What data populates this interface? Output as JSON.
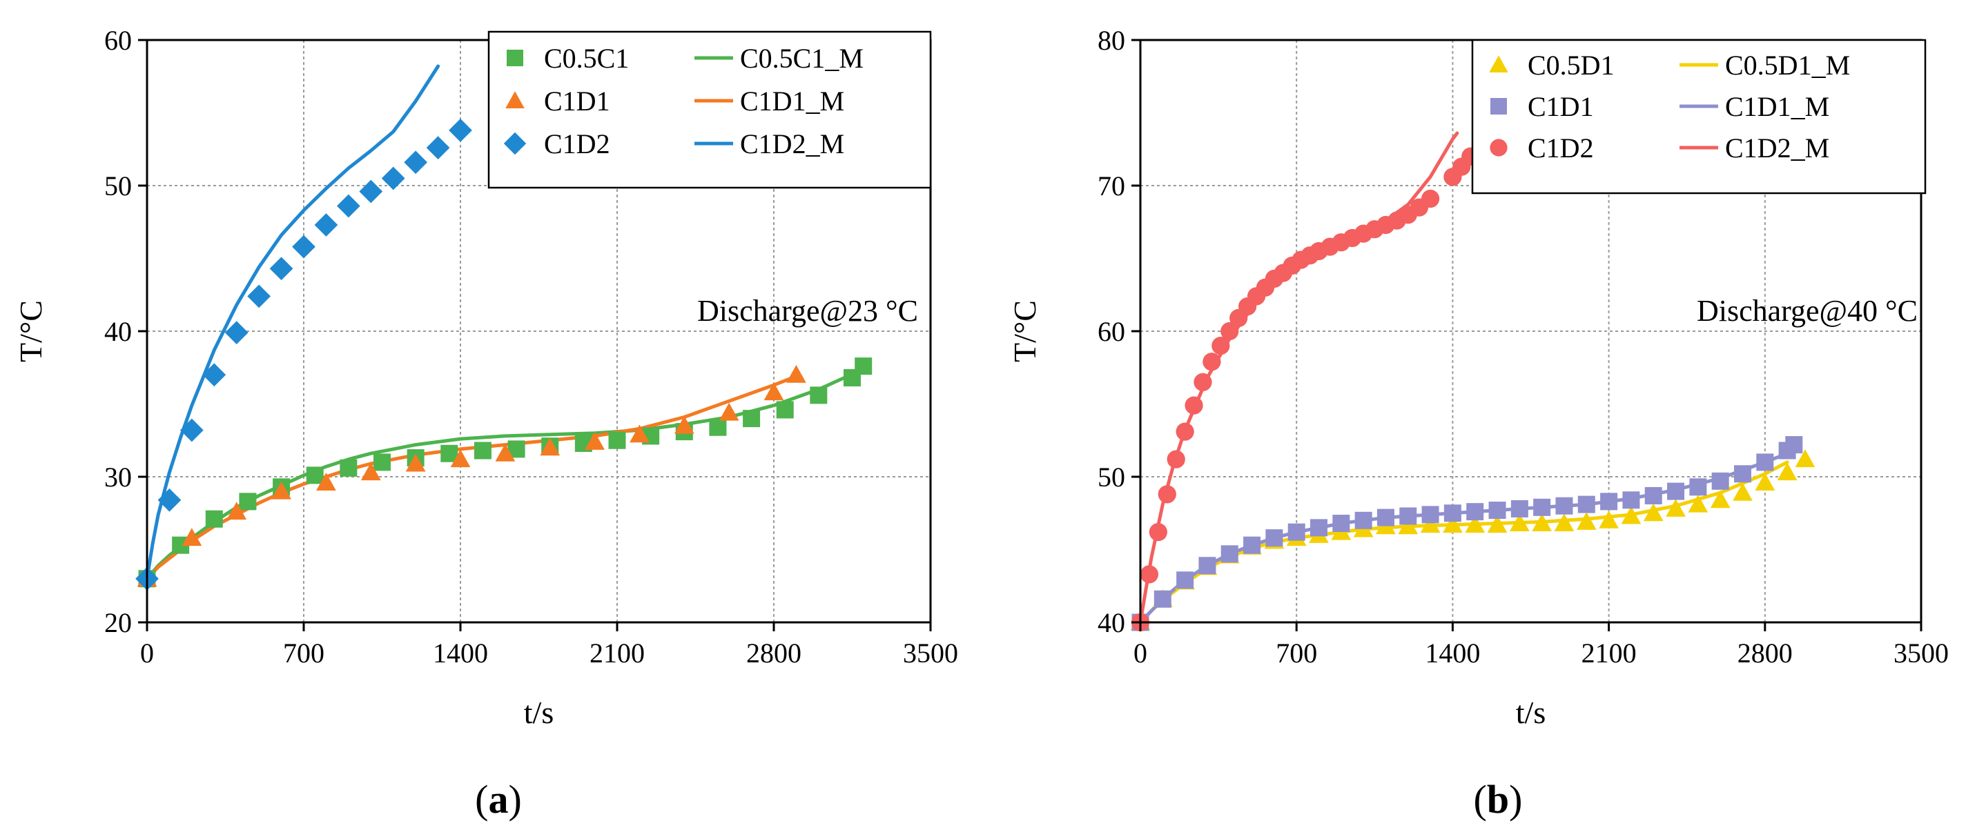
{
  "chart_data": [
    {
      "type": "line",
      "panel_label": "a",
      "xlabel": "t/s",
      "ylabel": "T/°C",
      "xlim": [
        0,
        3500
      ],
      "ylim": [
        20,
        60
      ],
      "xticks": [
        0,
        700,
        1400,
        2100,
        2800,
        3500
      ],
      "yticks": [
        20,
        30,
        40,
        50,
        60
      ],
      "grid": true,
      "annotation": "Discharge@23 °C",
      "legend_position": "top-right",
      "series": [
        {
          "name": "C0.5C1",
          "kind": "marker",
          "marker": "square",
          "color": "#4db34d",
          "x": [
            0,
            150,
            300,
            450,
            600,
            750,
            900,
            1050,
            1200,
            1350,
            1500,
            1650,
            1800,
            1950,
            2100,
            2250,
            2400,
            2550,
            2700,
            2850,
            3000,
            3150,
            3200
          ],
          "y": [
            23,
            25.3,
            27.1,
            28.3,
            29.3,
            30.1,
            30.6,
            31.0,
            31.3,
            31.6,
            31.8,
            31.9,
            32.1,
            32.3,
            32.5,
            32.8,
            33.1,
            33.4,
            34.0,
            34.6,
            35.6,
            36.8,
            37.6
          ]
        },
        {
          "name": "C1D1",
          "kind": "marker",
          "marker": "triangle",
          "color": "#f47a21",
          "x": [
            0,
            200,
            400,
            600,
            800,
            1000,
            1200,
            1400,
            1600,
            1800,
            2000,
            2200,
            2400,
            2600,
            2800,
            2900
          ],
          "y": [
            23,
            25.8,
            27.6,
            29.0,
            29.6,
            30.3,
            30.9,
            31.2,
            31.6,
            32.0,
            32.4,
            32.9,
            33.5,
            34.4,
            35.8,
            37.0
          ]
        },
        {
          "name": "C1D2",
          "kind": "marker",
          "marker": "diamond",
          "color": "#1f88d1",
          "x": [
            0,
            100,
            200,
            300,
            400,
            500,
            600,
            700,
            800,
            900,
            1000,
            1100,
            1200,
            1300,
            1400
          ],
          "y": [
            23,
            28.4,
            33.2,
            37.0,
            39.9,
            42.4,
            44.3,
            45.8,
            47.3,
            48.6,
            49.6,
            50.5,
            51.6,
            52.6,
            53.8
          ]
        },
        {
          "name": "C0.5C1_M",
          "kind": "line",
          "color": "#4db34d",
          "x": [
            0,
            50,
            100,
            200,
            300,
            400,
            500,
            600,
            700,
            800,
            900,
            1000,
            1100,
            1200,
            1300,
            1400,
            1600,
            1800,
            2000,
            2200,
            2400,
            2600,
            2800,
            3000,
            3200
          ],
          "y": [
            23,
            23.9,
            24.6,
            25.8,
            26.9,
            27.9,
            28.7,
            29.4,
            30.1,
            30.7,
            31.2,
            31.6,
            31.9,
            32.2,
            32.4,
            32.6,
            32.8,
            32.9,
            33.0,
            33.2,
            33.6,
            34.1,
            34.9,
            36.0,
            37.4
          ]
        },
        {
          "name": "C1D1_M",
          "kind": "line",
          "color": "#f47a21",
          "x": [
            0,
            50,
            100,
            200,
            300,
            400,
            500,
            600,
            700,
            800,
            900,
            1000,
            1100,
            1200,
            1400,
            1600,
            1800,
            2000,
            2200,
            2400,
            2600,
            2800,
            2900
          ],
          "y": [
            23,
            23.8,
            24.4,
            25.6,
            26.6,
            27.4,
            28.2,
            28.9,
            29.5,
            30.0,
            30.5,
            30.9,
            31.2,
            31.5,
            31.9,
            32.2,
            32.5,
            32.8,
            33.3,
            34.1,
            35.2,
            36.3,
            36.9
          ]
        },
        {
          "name": "C1D2_M",
          "kind": "line",
          "color": "#1f88d1",
          "x": [
            0,
            25,
            50,
            100,
            150,
            200,
            300,
            400,
            500,
            600,
            700,
            800,
            900,
            1000,
            1100,
            1200,
            1300
          ],
          "y": [
            23,
            25.4,
            27.4,
            30.3,
            32.7,
            34.9,
            38.7,
            41.8,
            44.4,
            46.6,
            48.3,
            49.8,
            51.2,
            52.4,
            53.7,
            55.8,
            58.2
          ]
        }
      ]
    },
    {
      "type": "line",
      "panel_label": "b",
      "xlabel": "t/s",
      "ylabel": "T/°C",
      "xlim": [
        0,
        3500
      ],
      "ylim": [
        40,
        80
      ],
      "xticks": [
        0,
        700,
        1400,
        2100,
        2800,
        3500
      ],
      "yticks": [
        40,
        50,
        60,
        70,
        80
      ],
      "grid": true,
      "annotation": "Discharge@40 °C",
      "legend_position": "top-right",
      "series": [
        {
          "name": "C0.5D1",
          "kind": "marker",
          "marker": "triangle",
          "color": "#f5d000",
          "x": [
            0,
            100,
            200,
            300,
            400,
            500,
            600,
            700,
            800,
            900,
            1000,
            1100,
            1200,
            1300,
            1400,
            1500,
            1600,
            1700,
            1800,
            1900,
            2000,
            2100,
            2200,
            2300,
            2400,
            2500,
            2600,
            2700,
            2800,
            2900,
            2980
          ],
          "y": [
            40,
            41.6,
            42.8,
            43.8,
            44.6,
            45.2,
            45.6,
            45.8,
            46.0,
            46.2,
            46.4,
            46.6,
            46.6,
            46.7,
            46.7,
            46.7,
            46.7,
            46.8,
            46.8,
            46.8,
            46.9,
            47.0,
            47.3,
            47.5,
            47.8,
            48.1,
            48.4,
            48.9,
            49.6,
            50.3,
            51.2
          ]
        },
        {
          "name": "C1D1",
          "kind": "marker",
          "marker": "square",
          "color": "#8f8fce",
          "x": [
            0,
            100,
            200,
            300,
            400,
            500,
            600,
            700,
            800,
            900,
            1000,
            1100,
            1200,
            1300,
            1400,
            1500,
            1600,
            1700,
            1800,
            1900,
            2000,
            2100,
            2200,
            2300,
            2400,
            2500,
            2600,
            2700,
            2800,
            2900,
            2930
          ],
          "y": [
            40,
            41.6,
            42.9,
            43.9,
            44.7,
            45.3,
            45.8,
            46.2,
            46.5,
            46.8,
            47.0,
            47.2,
            47.3,
            47.4,
            47.5,
            47.6,
            47.7,
            47.8,
            47.9,
            48.0,
            48.1,
            48.3,
            48.4,
            48.7,
            49.0,
            49.3,
            49.7,
            50.2,
            51.0,
            51.8,
            52.2
          ]
        },
        {
          "name": "C1D2",
          "kind": "marker",
          "marker": "circle",
          "color": "#f45f5f",
          "x": [
            0,
            40,
            80,
            120,
            160,
            200,
            240,
            280,
            320,
            360,
            400,
            440,
            480,
            520,
            560,
            600,
            640,
            680,
            720,
            760,
            800,
            850,
            900,
            950,
            1000,
            1050,
            1100,
            1150,
            1200,
            1250,
            1300,
            1400,
            1440,
            1480
          ],
          "y": [
            40,
            43.3,
            46.2,
            48.8,
            51.2,
            53.1,
            54.9,
            56.5,
            57.9,
            59.0,
            60.0,
            60.9,
            61.7,
            62.4,
            63.0,
            63.6,
            64.0,
            64.5,
            64.9,
            65.2,
            65.5,
            65.8,
            66.1,
            66.4,
            66.7,
            67.0,
            67.3,
            67.6,
            68.0,
            68.5,
            69.1,
            70.6,
            71.3,
            72.0
          ]
        },
        {
          "name": "C0.5D1_M",
          "kind": "line",
          "color": "#f5d000",
          "x": [
            0,
            50,
            100,
            200,
            300,
            400,
            500,
            600,
            700,
            800,
            900,
            1000,
            1100,
            1200,
            1400,
            1600,
            1800,
            2000,
            2200,
            2400,
            2600,
            2800,
            2900
          ],
          "y": [
            40,
            40.8,
            41.5,
            42.7,
            43.7,
            44.5,
            45.1,
            45.5,
            45.8,
            46.0,
            46.2,
            46.4,
            46.5,
            46.6,
            46.7,
            46.8,
            46.9,
            47.1,
            47.4,
            48.0,
            48.9,
            50.2,
            51.0
          ]
        },
        {
          "name": "C1D1_M",
          "kind": "line",
          "color": "#8f8fce",
          "x": [
            0,
            50,
            100,
            200,
            300,
            400,
            500,
            600,
            700,
            800,
            900,
            1000,
            1100,
            1200,
            1400,
            1600,
            1800,
            2000,
            2200,
            2400,
            2600,
            2800,
            2900
          ],
          "y": [
            40,
            40.8,
            41.6,
            42.9,
            43.9,
            44.7,
            45.3,
            45.8,
            46.2,
            46.5,
            46.8,
            47.0,
            47.2,
            47.3,
            47.5,
            47.7,
            47.9,
            48.1,
            48.5,
            49.1,
            49.9,
            51.0,
            51.6
          ]
        },
        {
          "name": "C1D2_M",
          "kind": "line",
          "color": "#f45f5f",
          "x": [
            0,
            25,
            50,
            100,
            150,
            200,
            300,
            400,
            500,
            600,
            700,
            800,
            900,
            1000,
            1100,
            1200,
            1300,
            1400,
            1420
          ],
          "y": [
            40,
            42.3,
            44.5,
            48.1,
            50.9,
            53.2,
            56.8,
            59.5,
            61.6,
            63.2,
            64.6,
            65.5,
            66.2,
            66.8,
            67.6,
            68.7,
            70.6,
            73.2,
            73.6
          ]
        }
      ]
    }
  ]
}
